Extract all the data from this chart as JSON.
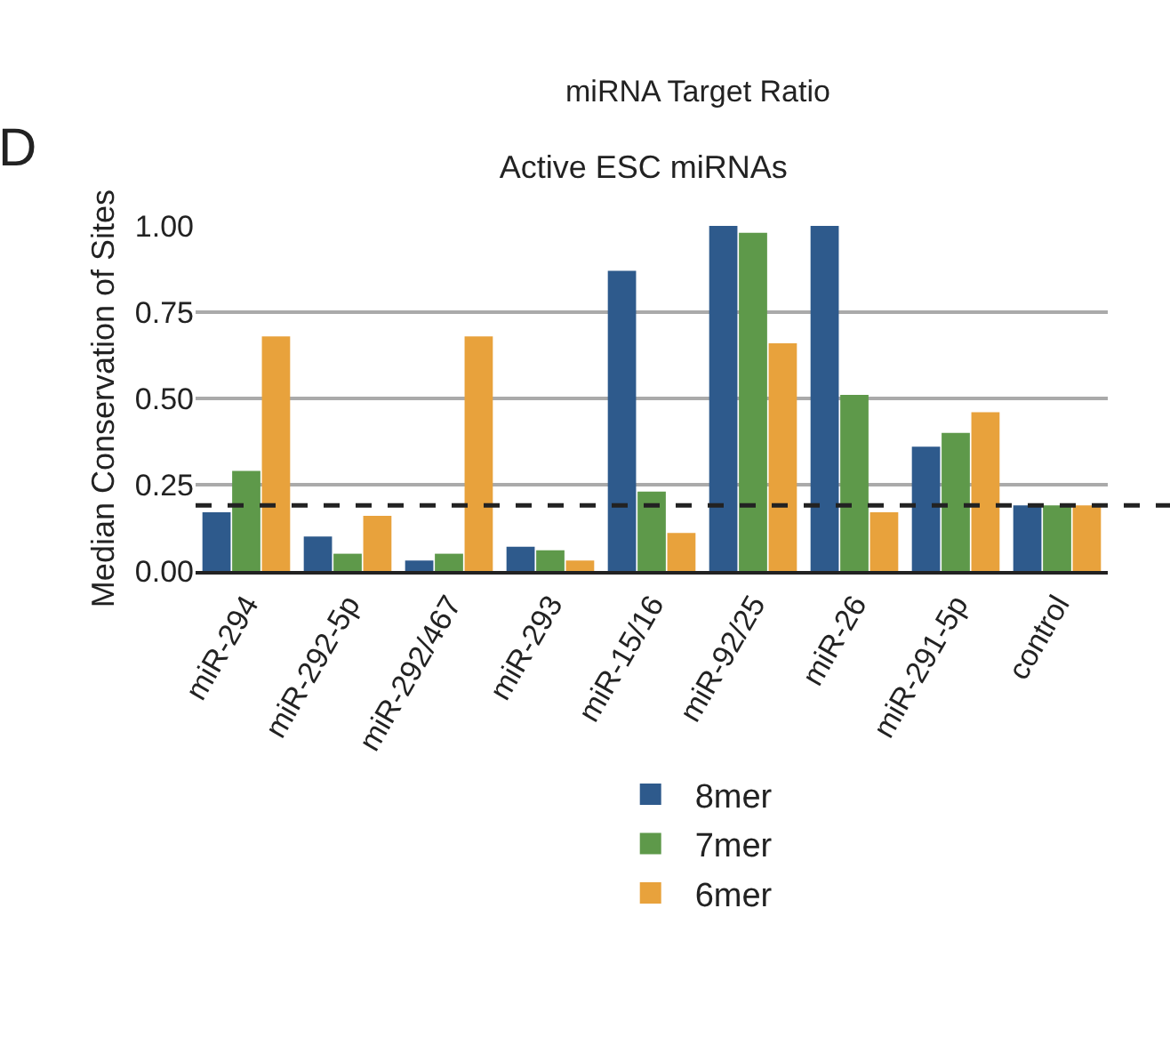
{
  "chart_data": {
    "type": "bar",
    "title": "Active ESC miRNAs",
    "ylabel": "Median Conservation of Sites",
    "annotations": [
      "D",
      "miRNA Target Ratio"
    ],
    "categories": [
      "miR-294",
      "miR-292-5p",
      "miR-292/467",
      "miR-293",
      "miR-15/16",
      "miR-92/25",
      "miR-26",
      "miR-291-5p",
      "control"
    ],
    "series": [
      {
        "name": "8mer",
        "color": "#2e5a8c",
        "values": [
          0.17,
          0.1,
          0.03,
          0.07,
          0.87,
          1.0,
          1.0,
          0.36,
          0.19
        ]
      },
      {
        "name": "7mer",
        "color": "#5e994a",
        "values": [
          0.29,
          0.05,
          0.05,
          0.06,
          0.23,
          0.98,
          0.51,
          0.4,
          0.19
        ]
      },
      {
        "name": "6mer",
        "color": "#e8a23c",
        "values": [
          0.68,
          0.16,
          0.68,
          0.03,
          0.11,
          0.66,
          0.17,
          0.46,
          0.19
        ]
      }
    ],
    "ylim": [
      0,
      1.0
    ],
    "yticks": [
      {
        "value": 0,
        "label": "0.00"
      },
      {
        "value": 0.25,
        "label": "0.25"
      },
      {
        "value": 0.5,
        "label": "0.50"
      },
      {
        "value": 0.75,
        "label": "0.75"
      },
      {
        "value": 1.0,
        "label": "1.00"
      }
    ],
    "ref_lines": [
      {
        "axis": "y",
        "value": 0.19,
        "color": "#222222",
        "line_style": "dashed"
      }
    ],
    "grid": "y",
    "legend": "bottom"
  }
}
